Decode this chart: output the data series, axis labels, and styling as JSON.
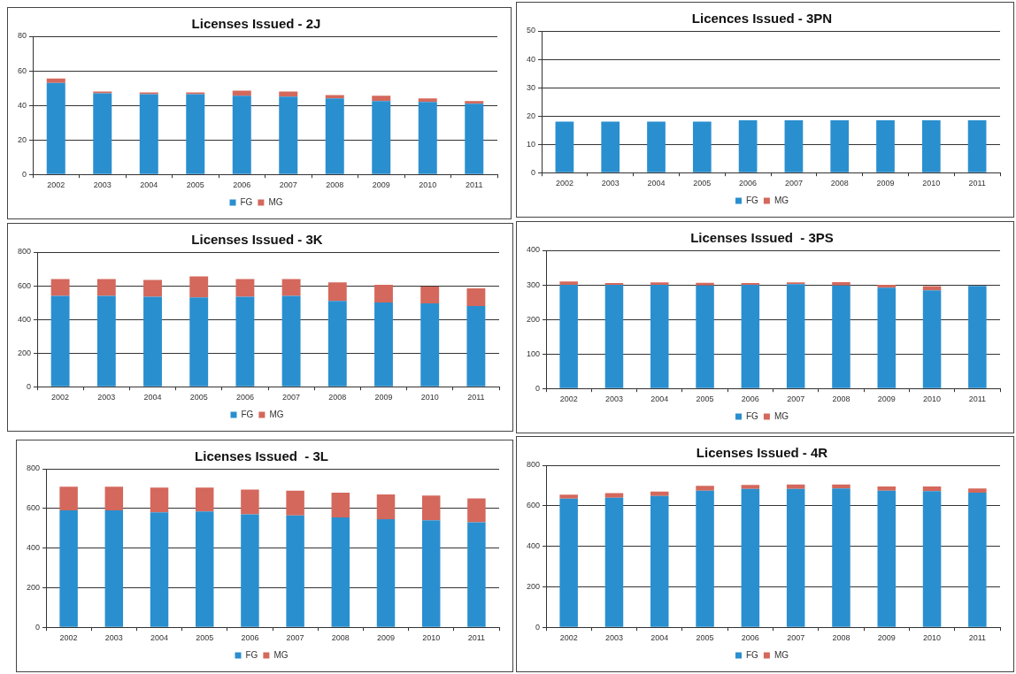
{
  "chart_data": [
    {
      "type": "bar",
      "title": "Licenses Issued - 2J",
      "categories": [
        "2002",
        "2003",
        "2004",
        "2005",
        "2006",
        "2007",
        "2008",
        "2009",
        "2010",
        "2011"
      ],
      "series": [
        {
          "name": "FG",
          "color": "#2a8fcf",
          "values": [
            53,
            47,
            46.5,
            46.5,
            45.5,
            45,
            44,
            42.5,
            42,
            41
          ]
        },
        {
          "name": "MG",
          "color": "#d4685c",
          "values": [
            2.5,
            1,
            1,
            1,
            3,
            3,
            2,
            3,
            2,
            1.5
          ]
        }
      ],
      "stacked": true,
      "ylim": [
        0,
        80
      ],
      "yticks": [
        0,
        20,
        40,
        60,
        80
      ],
      "grid": "y",
      "legend": "bottom"
    },
    {
      "type": "bar",
      "title": "Licences Issued - 3PN",
      "categories": [
        "2002",
        "2003",
        "2004",
        "2005",
        "2006",
        "2007",
        "2008",
        "2009",
        "2010",
        "2011"
      ],
      "series": [
        {
          "name": "FG",
          "color": "#2a8fcf",
          "values": [
            18,
            18,
            18,
            18,
            18.5,
            18.5,
            18.5,
            18.5,
            18.5,
            18.5
          ]
        },
        {
          "name": "MG",
          "color": "#d4685c",
          "values": [
            0,
            0,
            0,
            0,
            0,
            0,
            0,
            0,
            0,
            0
          ]
        }
      ],
      "stacked": true,
      "ylim": [
        0,
        50
      ],
      "yticks": [
        0,
        10,
        20,
        30,
        40,
        50
      ],
      "grid": "y",
      "legend": "bottom"
    },
    {
      "type": "bar",
      "title": "Licenses Issued - 3K",
      "categories": [
        "2002",
        "2003",
        "2004",
        "2005",
        "2006",
        "2007",
        "2008",
        "2009",
        "2010",
        "2011"
      ],
      "series": [
        {
          "name": "FG",
          "color": "#2a8fcf",
          "values": [
            540,
            540,
            535,
            530,
            535,
            540,
            510,
            500,
            495,
            480
          ]
        },
        {
          "name": "MG",
          "color": "#d4685c",
          "values": [
            100,
            100,
            100,
            125,
            105,
            100,
            110,
            105,
            100,
            105
          ]
        }
      ],
      "stacked": true,
      "ylim": [
        0,
        800
      ],
      "yticks": [
        0,
        200,
        400,
        600,
        800
      ],
      "grid": "y",
      "legend": "bottom"
    },
    {
      "type": "bar",
      "title": "Licenses Issued  - 3PS",
      "categories": [
        "2002",
        "2003",
        "2004",
        "2005",
        "2006",
        "2007",
        "2008",
        "2009",
        "2010",
        "2011"
      ],
      "series": [
        {
          "name": "FG",
          "color": "#2a8fcf",
          "values": [
            300,
            300,
            300,
            298,
            300,
            302,
            298,
            292,
            284,
            297
          ]
        },
        {
          "name": "MG",
          "color": "#d4685c",
          "values": [
            10,
            5,
            7,
            8,
            5,
            5,
            10,
            8,
            12,
            0
          ]
        }
      ],
      "stacked": true,
      "ylim": [
        0,
        400
      ],
      "yticks": [
        0,
        100,
        200,
        300,
        400
      ],
      "grid": "y",
      "legend": "bottom"
    },
    {
      "type": "bar",
      "title": "Licenses Issued  - 3L",
      "categories": [
        "2002",
        "2003",
        "2004",
        "2005",
        "2006",
        "2007",
        "2008",
        "2009",
        "2010",
        "2011"
      ],
      "series": [
        {
          "name": "FG",
          "color": "#2a8fcf",
          "values": [
            590,
            590,
            580,
            585,
            570,
            565,
            555,
            545,
            540,
            530
          ]
        },
        {
          "name": "MG",
          "color": "#d4685c",
          "values": [
            120,
            120,
            125,
            120,
            125,
            125,
            125,
            125,
            125,
            120
          ]
        }
      ],
      "stacked": true,
      "ylim": [
        0,
        800
      ],
      "yticks": [
        0,
        200,
        400,
        600,
        800
      ],
      "grid": "y",
      "legend": "bottom"
    },
    {
      "type": "bar",
      "title": "Licenses Issued - 4R",
      "categories": [
        "2002",
        "2003",
        "2004",
        "2005",
        "2006",
        "2007",
        "2008",
        "2009",
        "2010",
        "2011"
      ],
      "series": [
        {
          "name": "FG",
          "color": "#2a8fcf",
          "values": [
            635,
            640,
            648,
            675,
            683,
            683,
            685,
            675,
            672,
            665
          ]
        },
        {
          "name": "MG",
          "color": "#d4685c",
          "values": [
            20,
            22,
            22,
            23,
            20,
            22,
            20,
            20,
            23,
            20
          ]
        }
      ],
      "stacked": true,
      "ylim": [
        0,
        800
      ],
      "yticks": [
        0,
        200,
        400,
        600,
        800
      ],
      "grid": "y",
      "legend": "bottom"
    }
  ]
}
